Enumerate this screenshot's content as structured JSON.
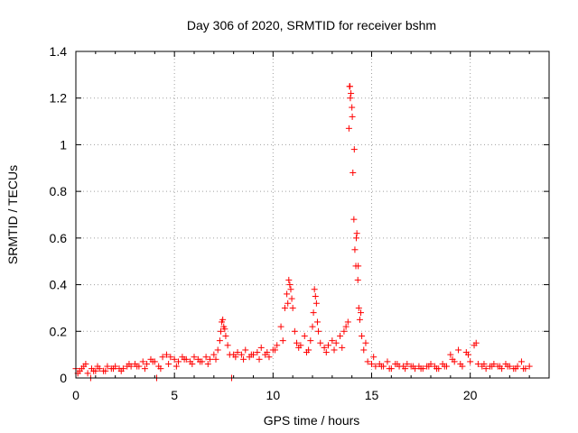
{
  "chart_data": {
    "type": "scatter",
    "title": "Day 306 of 2020, SRMTID for receiver bshm",
    "xlabel": "GPS time / hours",
    "ylabel": "SRMTID / TECUs",
    "xlim": [
      0,
      24
    ],
    "ylim": [
      0,
      1.4
    ],
    "x_ticks": [
      0,
      5,
      10,
      15,
      20
    ],
    "x_tick_labels": [
      "0",
      "5",
      "10",
      "15",
      "20"
    ],
    "y_ticks": [
      0,
      0.2,
      0.4,
      0.6,
      0.8,
      1.0,
      1.2,
      1.4
    ],
    "y_tick_labels": [
      "0",
      "0.2",
      "0.4",
      "0.6",
      "0.8",
      "1",
      "1.2",
      "1.4"
    ],
    "grid": true,
    "marker": "+",
    "colors": {
      "series": "#ff0000",
      "grid": "#a0a0a0",
      "frame": "#000000"
    },
    "series": [
      {
        "name": "SRMTID",
        "x": [
          0.0,
          0.2,
          0.4,
          0.6,
          0.8,
          1.0,
          1.2,
          1.4,
          1.6,
          1.8,
          2.0,
          2.2,
          2.4,
          2.6,
          2.8,
          3.0,
          3.2,
          3.4,
          3.6,
          3.8,
          4.0,
          4.2,
          4.4,
          4.6,
          4.8,
          5.0,
          5.2,
          5.4,
          5.6,
          5.8,
          6.0,
          6.2,
          6.4,
          6.6,
          6.8,
          7.0,
          7.2,
          7.3,
          7.4,
          7.5,
          7.6,
          7.7,
          7.8,
          8.0,
          8.2,
          8.4,
          8.6,
          8.8,
          9.0,
          9.2,
          9.4,
          9.6,
          9.8,
          10.0,
          10.2,
          10.4,
          10.6,
          10.7,
          10.8,
          10.9,
          11.0,
          11.1,
          11.2,
          11.4,
          11.6,
          11.8,
          11.9,
          12.0,
          12.1,
          12.2,
          12.3,
          12.4,
          12.6,
          12.8,
          13.0,
          13.2,
          13.4,
          13.6,
          13.8,
          13.85,
          13.9,
          13.95,
          14.0,
          14.05,
          14.1,
          14.15,
          14.2,
          14.25,
          14.3,
          14.35,
          14.4,
          14.5,
          14.6,
          14.8,
          15.0,
          15.2,
          15.4,
          15.6,
          15.8,
          16.0,
          16.2,
          16.4,
          16.6,
          16.8,
          17.0,
          17.2,
          17.4,
          17.6,
          17.8,
          18.0,
          18.2,
          18.4,
          18.6,
          18.8,
          19.0,
          19.2,
          19.4,
          19.6,
          19.8,
          20.0,
          20.2,
          20.4,
          20.6,
          20.8,
          21.0,
          21.2,
          21.4,
          21.6,
          21.8,
          22.0,
          22.2,
          22.4,
          22.6,
          22.8,
          23.0,
          0.1,
          0.3,
          0.5,
          0.9,
          1.1,
          1.5,
          1.9,
          2.3,
          2.7,
          3.1,
          3.5,
          3.9,
          4.3,
          4.7,
          5.1,
          5.5,
          5.9,
          6.3,
          6.7,
          7.1,
          7.35,
          7.45,
          7.55,
          8.1,
          8.5,
          8.9,
          9.3,
          9.7,
          10.1,
          10.5,
          10.75,
          10.85,
          10.95,
          11.3,
          11.7,
          12.05,
          12.15,
          12.25,
          12.7,
          13.1,
          13.5,
          13.7,
          13.88,
          13.92,
          14.02,
          14.12,
          14.22,
          14.32,
          14.45,
          14.7,
          15.1,
          15.5,
          15.9,
          16.3,
          16.7,
          17.1,
          17.5,
          17.9,
          18.3,
          18.7,
          19.1,
          19.5,
          19.9,
          20.3,
          20.7,
          21.1,
          21.5,
          21.9,
          22.3,
          22.7,
          4.1,
          7.9,
          0.75
        ],
        "y": [
          0.04,
          0.03,
          0.05,
          0.02,
          0.04,
          0.03,
          0.04,
          0.03,
          0.05,
          0.04,
          0.05,
          0.04,
          0.04,
          0.05,
          0.05,
          0.06,
          0.05,
          0.07,
          0.06,
          0.08,
          0.07,
          0.05,
          0.09,
          0.1,
          0.09,
          0.08,
          0.07,
          0.09,
          0.08,
          0.07,
          0.09,
          0.08,
          0.07,
          0.09,
          0.08,
          0.1,
          0.12,
          0.16,
          0.24,
          0.22,
          0.18,
          0.14,
          0.1,
          0.1,
          0.11,
          0.1,
          0.12,
          0.09,
          0.1,
          0.11,
          0.13,
          0.1,
          0.09,
          0.12,
          0.14,
          0.22,
          0.3,
          0.36,
          0.42,
          0.38,
          0.3,
          0.2,
          0.15,
          0.14,
          0.18,
          0.12,
          0.16,
          0.22,
          0.38,
          0.32,
          0.2,
          0.15,
          0.13,
          0.14,
          0.16,
          0.15,
          0.18,
          0.2,
          0.24,
          1.07,
          1.25,
          1.22,
          1.16,
          0.88,
          0.68,
          0.55,
          0.48,
          0.62,
          0.42,
          0.3,
          0.25,
          0.18,
          0.12,
          0.07,
          0.06,
          0.05,
          0.06,
          0.05,
          0.07,
          0.04,
          0.06,
          0.05,
          0.05,
          0.06,
          0.05,
          0.04,
          0.05,
          0.04,
          0.05,
          0.06,
          0.05,
          0.04,
          0.06,
          0.05,
          0.1,
          0.07,
          0.12,
          0.05,
          0.11,
          0.07,
          0.14,
          0.06,
          0.05,
          0.04,
          0.05,
          0.06,
          0.05,
          0.04,
          0.06,
          0.05,
          0.04,
          0.05,
          0.07,
          0.04,
          0.05,
          0.02,
          0.04,
          0.06,
          0.03,
          0.05,
          0.03,
          0.04,
          0.03,
          0.06,
          0.05,
          0.04,
          0.07,
          0.04,
          0.06,
          0.05,
          0.08,
          0.06,
          0.07,
          0.06,
          0.08,
          0.2,
          0.25,
          0.21,
          0.09,
          0.08,
          0.1,
          0.08,
          0.11,
          0.12,
          0.16,
          0.32,
          0.4,
          0.34,
          0.13,
          0.11,
          0.28,
          0.35,
          0.24,
          0.11,
          0.12,
          0.13,
          0.22,
          1.25,
          1.2,
          1.12,
          0.98,
          0.6,
          0.48,
          0.28,
          0.15,
          0.09,
          0.05,
          0.04,
          0.06,
          0.04,
          0.05,
          0.04,
          0.05,
          0.04,
          0.05,
          0.08,
          0.06,
          0.1,
          0.15,
          0.06,
          0.05,
          0.05,
          0.05,
          0.04,
          0.04,
          0.0,
          0.0,
          0.0
        ]
      }
    ]
  }
}
